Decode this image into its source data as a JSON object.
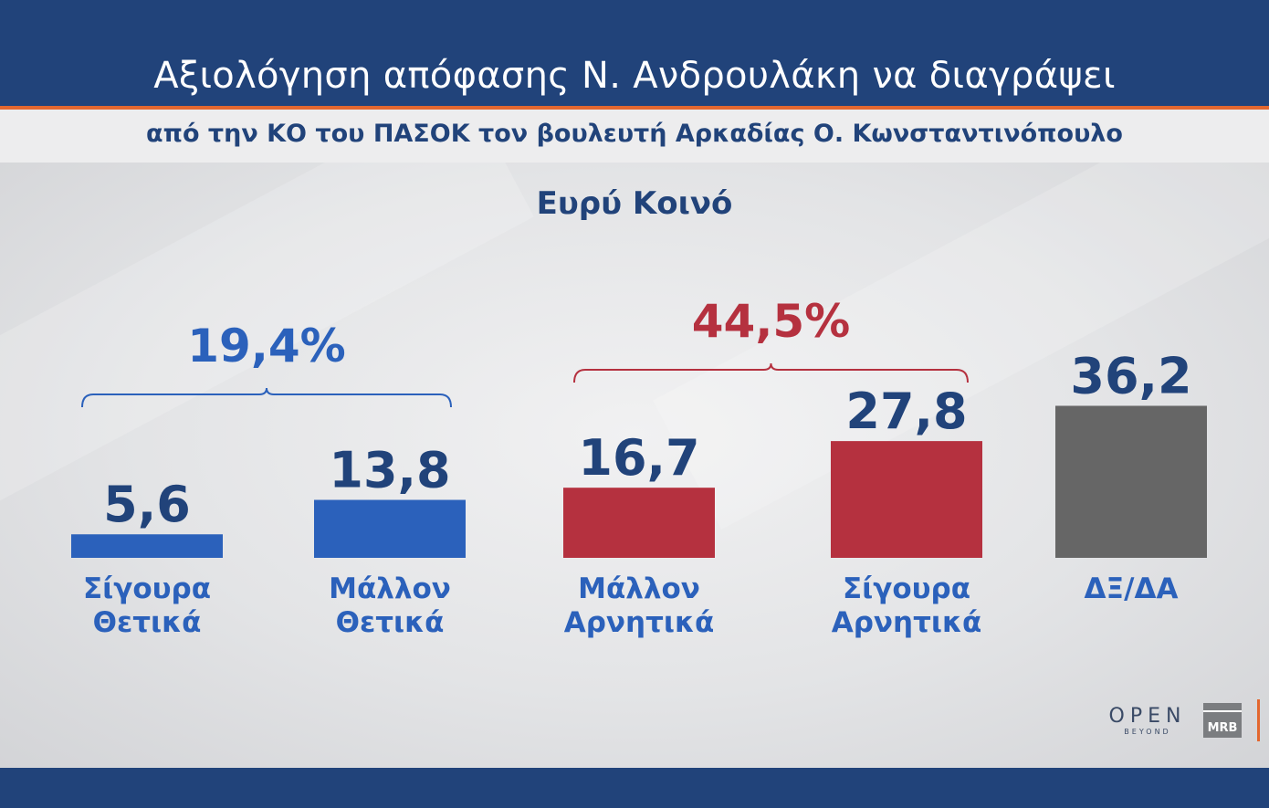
{
  "header": {
    "title": "Αξιολόγηση απόφασης Ν.  Ανδρουλάκη να διαγράψει",
    "subtitle": "από την ΚΟ του ΠΑΣΟΚ τον βουλευτή Αρκαδίας Ο. Κωνσταντινόπουλο"
  },
  "chart_data": {
    "type": "bar",
    "title": "Ευρύ Κοινό",
    "categories": [
      [
        "Σίγουρα",
        "Θετικά"
      ],
      [
        "Μάλλον",
        "Θετικά"
      ],
      [
        "Μάλλον",
        "Αρνητικά"
      ],
      [
        "Σίγουρα",
        "Αρνητικά"
      ],
      [
        "ΔΞ/ΔΑ"
      ]
    ],
    "values": [
      5.6,
      13.8,
      16.7,
      27.8,
      36.2
    ],
    "value_labels": [
      "5,6",
      "13,8",
      "16,7",
      "27,8",
      "36,2"
    ],
    "colors": [
      "#2b61bb",
      "#2b61bb",
      "#b5313f",
      "#b5313f",
      "#666666"
    ],
    "groups": [
      {
        "label": "19,4%",
        "from": 0,
        "to": 1,
        "color": "#2b61bb"
      },
      {
        "label": "44,5%",
        "from": 2,
        "to": 3,
        "color": "#b5313f"
      }
    ],
    "value_label_color": "#21437a",
    "category_label_color": "#2b61bb",
    "grid": false,
    "legend": "none"
  },
  "logos": {
    "open": "OPEN",
    "beyond": "BEYOND",
    "mrb": "MRB"
  }
}
